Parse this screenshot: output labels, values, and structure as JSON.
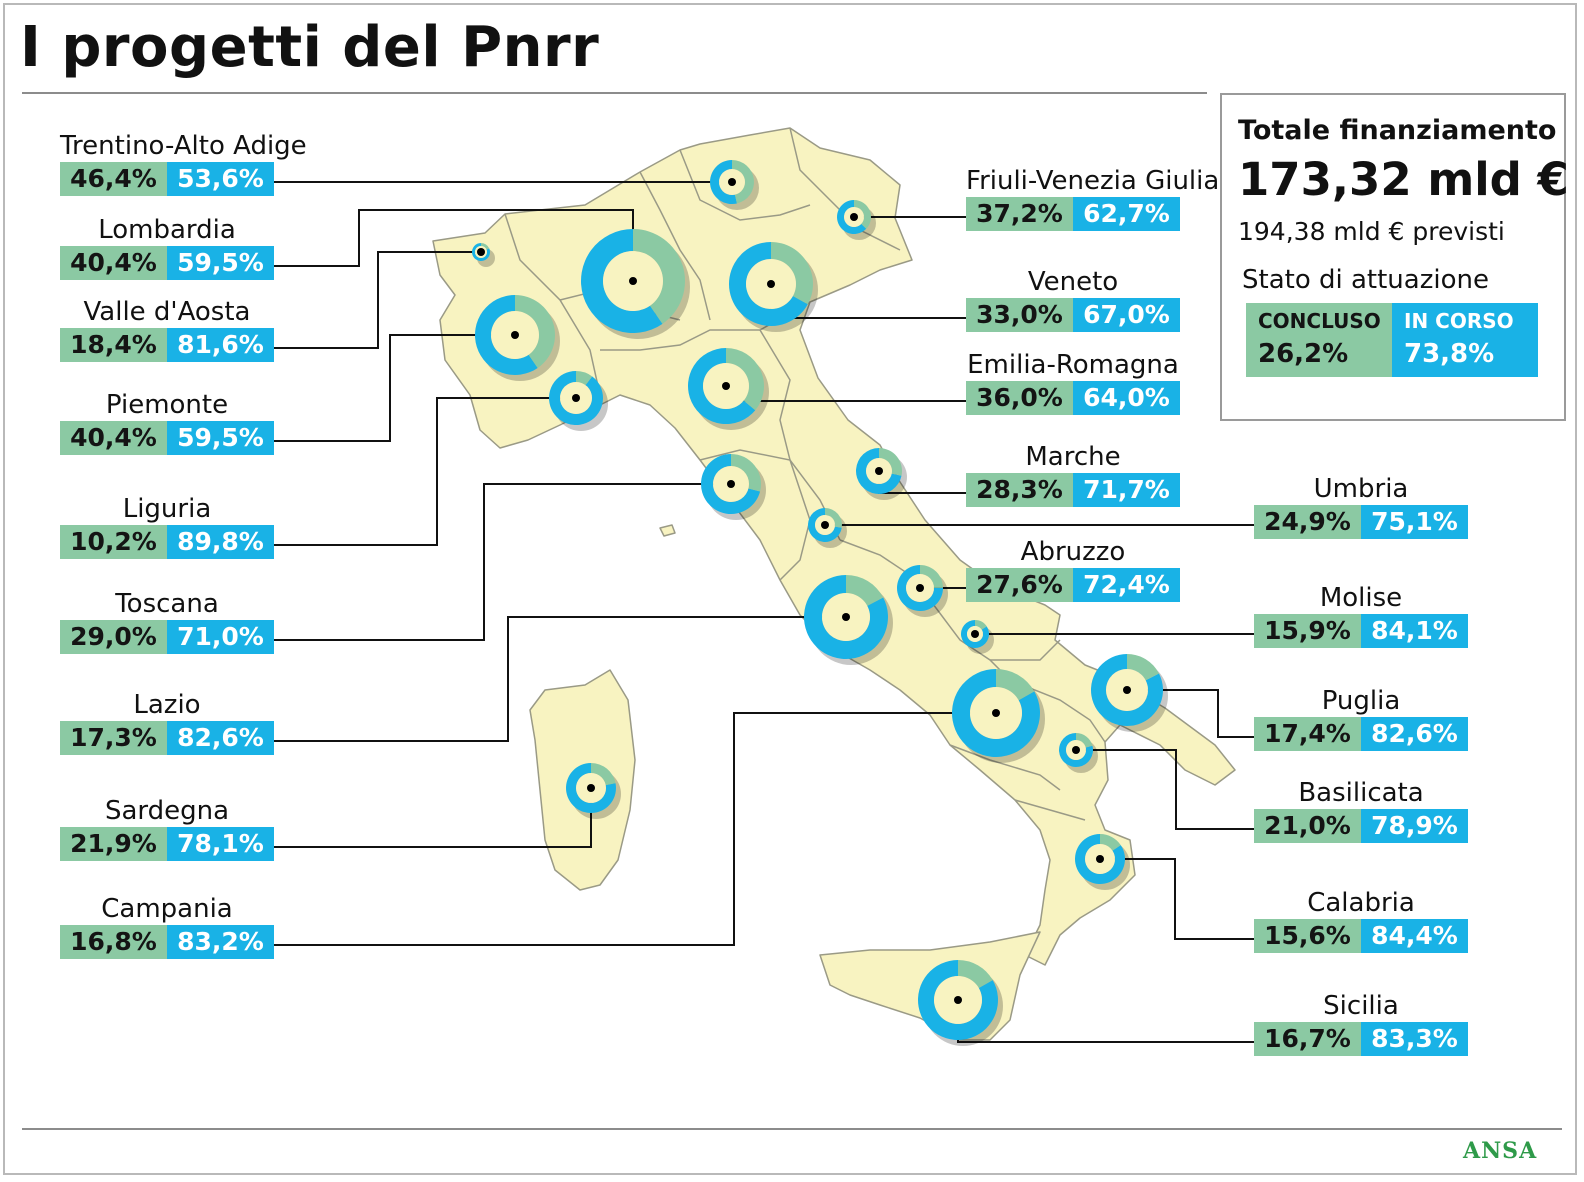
{
  "title": "I progetti del Pnrr",
  "colors": {
    "concluso": "#8bc9a3",
    "in_corso": "#19b2e6",
    "land": "#f8f3c1",
    "border": "#9a9a86"
  },
  "totale": {
    "title": "Totale finanziamento",
    "value": "173,32 mld €",
    "previsti": "194,38 mld € previsti",
    "stato_title": "Stato di attuazione",
    "concluso_label": "CONCLUSO",
    "concluso_value": "26,2%",
    "in_corso_label": "IN CORSO",
    "in_corso_value": "73,8%"
  },
  "regions": [
    {
      "name": "Trentino-Alto Adige",
      "concluso": "46,4%",
      "in_corso": "53,6%"
    },
    {
      "name": "Lombardia",
      "concluso": "40,4%",
      "in_corso": "59,5%"
    },
    {
      "name": "Valle d'Aosta",
      "concluso": "18,4%",
      "in_corso": "81,6%"
    },
    {
      "name": "Piemonte",
      "concluso": "40,4%",
      "in_corso": "59,5%"
    },
    {
      "name": "Liguria",
      "concluso": "10,2%",
      "in_corso": "89,8%"
    },
    {
      "name": "Toscana",
      "concluso": "29,0%",
      "in_corso": "71,0%"
    },
    {
      "name": "Lazio",
      "concluso": "17,3%",
      "in_corso": "82,6%"
    },
    {
      "name": "Sardegna",
      "concluso": "21,9%",
      "in_corso": "78,1%"
    },
    {
      "name": "Campania",
      "concluso": "16,8%",
      "in_corso": "83,2%"
    },
    {
      "name": "Friuli-Venezia Giulia",
      "concluso": "37,2%",
      "in_corso": "62,7%"
    },
    {
      "name": "Veneto",
      "concluso": "33,0%",
      "in_corso": "67,0%"
    },
    {
      "name": "Emilia-Romagna",
      "concluso": "36,0%",
      "in_corso": "64,0%"
    },
    {
      "name": "Marche",
      "concluso": "28,3%",
      "in_corso": "71,7%"
    },
    {
      "name": "Abruzzo",
      "concluso": "27,6%",
      "in_corso": "72,4%"
    },
    {
      "name": "Umbria",
      "concluso": "24,9%",
      "in_corso": "75,1%"
    },
    {
      "name": "Molise",
      "concluso": "15,9%",
      "in_corso": "84,1%"
    },
    {
      "name": "Puglia",
      "concluso": "17,4%",
      "in_corso": "82,6%"
    },
    {
      "name": "Basilicata",
      "concluso": "21,0%",
      "in_corso": "78,9%"
    },
    {
      "name": "Calabria",
      "concluso": "15,6%",
      "in_corso": "84,4%"
    },
    {
      "name": "Sicilia",
      "concluso": "16,7%",
      "in_corso": "83,3%"
    }
  ],
  "credit": "ANSA"
}
